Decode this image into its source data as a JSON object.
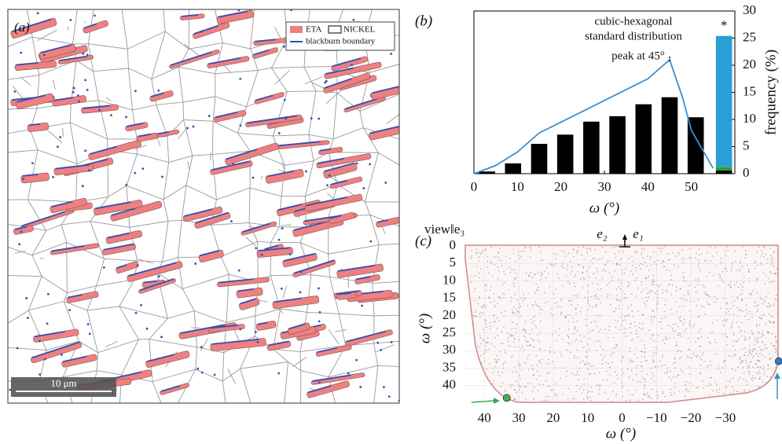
{
  "micrograph": {
    "panel": "(a)",
    "legend": [
      "ETA",
      "NICKEL",
      "blackburn boundary"
    ],
    "scale_bar": "10 μm"
  },
  "chart_data": [
    {
      "type": "bar",
      "title": "(b)",
      "x": [
        3,
        9,
        15,
        21,
        27,
        33,
        39,
        45,
        51
      ],
      "values": [
        0.4,
        1.9,
        5.5,
        7.2,
        9.6,
        10.6,
        12.8,
        14.1,
        10.4
      ],
      "color": "#000000",
      "extra_bar": {
        "x": 57.5,
        "label": "*",
        "segments": [
          {
            "value": 0.6,
            "color": "#000000"
          },
          {
            "value": 0.6,
            "color": "#2ca02c"
          },
          {
            "value": 24.2,
            "color": "#2a9fd6"
          }
        ]
      },
      "line": {
        "x": [
          0,
          5,
          10,
          15,
          20,
          25,
          30,
          35,
          40,
          45,
          48,
          50,
          55
        ],
        "values": [
          0,
          1.5,
          4,
          7.5,
          9.5,
          11.5,
          13.5,
          15.5,
          17.5,
          21,
          14,
          8,
          1
        ],
        "color": "#3a8fd0"
      },
      "annotations": [
        "cubic-hexagonal",
        "standard distribution",
        "peak at 45°"
      ],
      "xlabel": "ω (°)",
      "ylabel": "frequency (%)",
      "yaxis_side": "right",
      "xlim": [
        0,
        60
      ],
      "ylim": [
        0,
        30
      ],
      "xticks": [
        0,
        10,
        20,
        30,
        40,
        50
      ],
      "yticks": [
        0,
        5,
        10,
        15,
        20,
        25,
        30
      ]
    },
    {
      "type": "scatter",
      "title": "(c)",
      "view_label": "view‖e₃",
      "direction_labels": [
        "e₂",
        "e₁"
      ],
      "x": [
        33.5,
        -45.5
      ],
      "values": [
        43.5,
        33
      ],
      "colors": [
        "#4caf50",
        "#2a7fd0"
      ],
      "xlabel": "ω (°)",
      "ylabel": "ω (°)",
      "y_reversed": true,
      "xlim": [
        46,
        -46
      ],
      "ylim": [
        0,
        45
      ],
      "xticks": [
        40,
        30,
        20,
        10,
        0,
        {
          "value": -10,
          "label": "−10"
        },
        {
          "value": -20,
          "label": "−20"
        },
        {
          "value": -30,
          "label": "−30"
        }
      ],
      "yticks": [
        0,
        5,
        10,
        15,
        20,
        25,
        30,
        35,
        40
      ]
    }
  ]
}
